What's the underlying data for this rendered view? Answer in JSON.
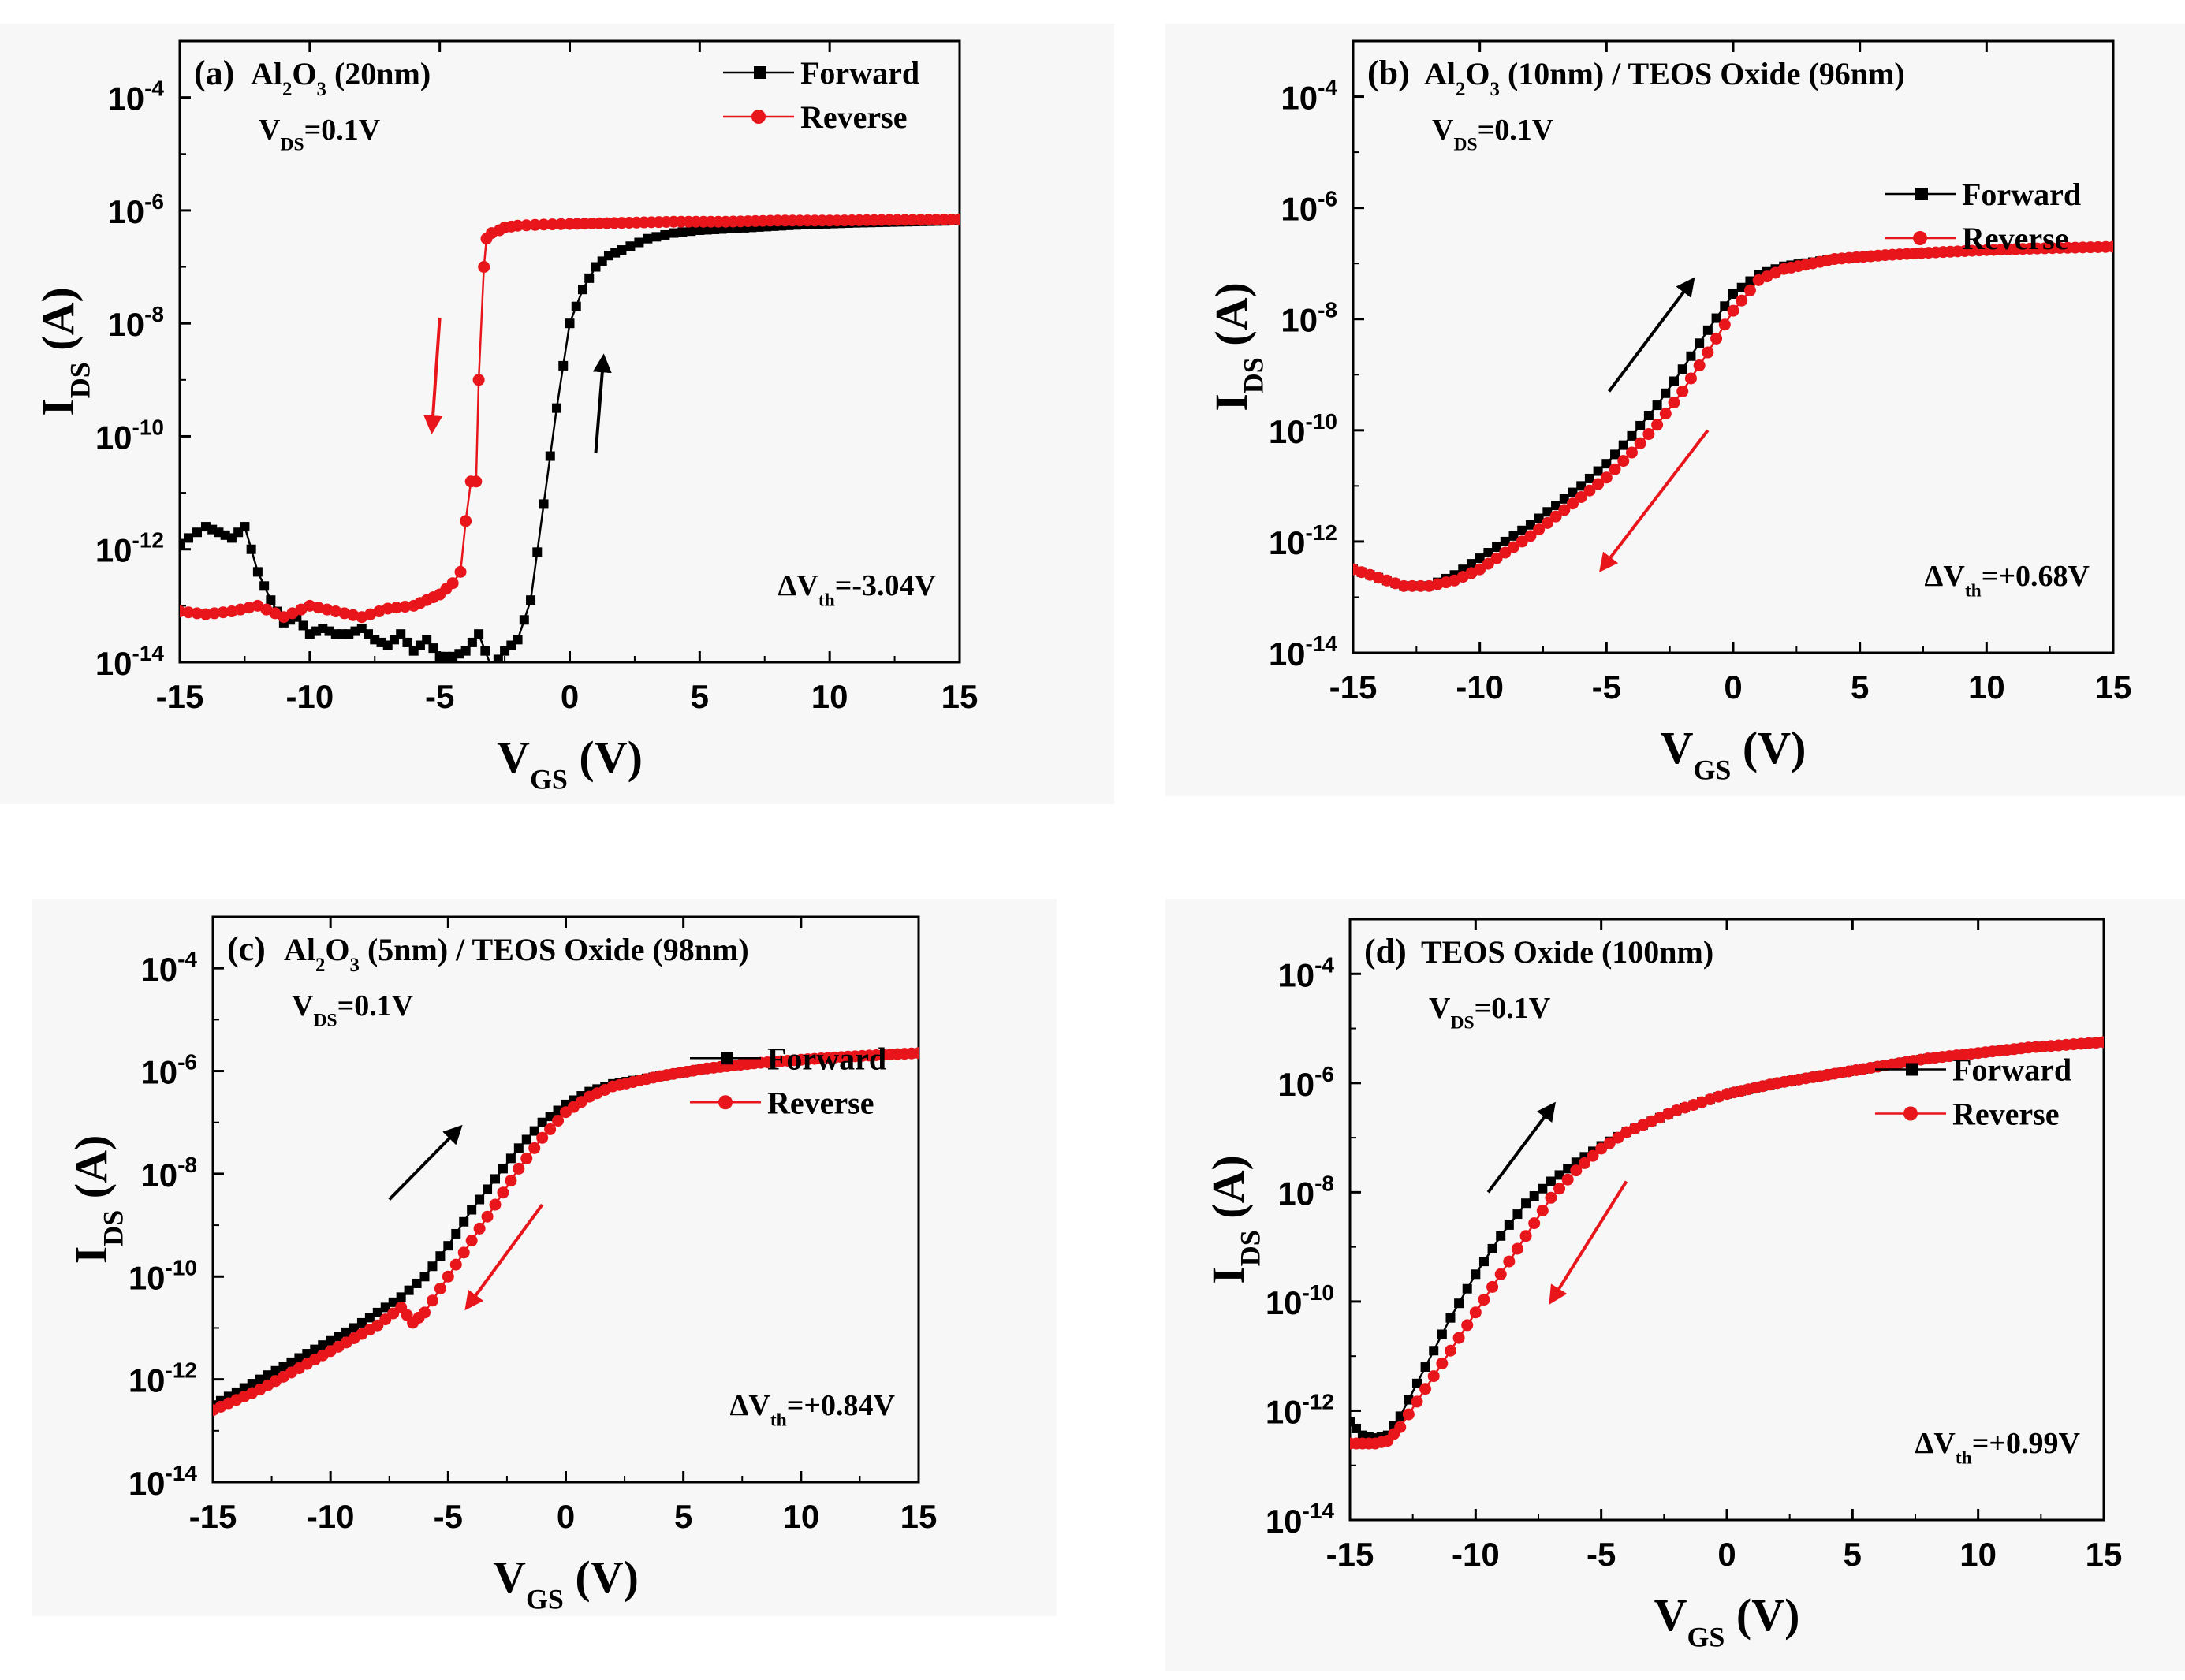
{
  "chart_data": [
    {
      "type": "line",
      "panel_id": "(a)",
      "label_parts": [
        "Al",
        "2",
        "O",
        "3",
        " (20nm)"
      ],
      "vds_parts": [
        "V",
        "DS",
        "=0.1V"
      ],
      "dvth_parts": [
        "ΔV",
        "th",
        "=-3.04V"
      ],
      "x_label_parts": [
        "V",
        "GS",
        " (V)"
      ],
      "y_label_parts": [
        "I",
        "DS",
        " (A)"
      ],
      "xlim": [
        -15,
        15
      ],
      "ylim_log10": [
        -14,
        -3
      ],
      "x_ticks": [
        -15,
        -10,
        -5,
        0,
        5,
        10,
        15
      ],
      "y_tick_exponents": [
        -4,
        -6,
        -8,
        -10,
        -12,
        -14
      ],
      "legend": [
        "Forward",
        "Reverse"
      ],
      "legend_pos": "top-right",
      "series": [
        {
          "name": "Forward",
          "color": "#000000",
          "marker": "square",
          "x": [
            -15,
            -14,
            -13.5,
            -13,
            -12.5,
            -12,
            -11.5,
            -11,
            -10.5,
            -10,
            -9.5,
            -9,
            -8.5,
            -8,
            -7.5,
            -7,
            -6.5,
            -6,
            -5.5,
            -5,
            -4.5,
            -4,
            -3.5,
            -3,
            -2.5,
            -2,
            -1.5,
            -1,
            -0.5,
            0,
            0.5,
            1,
            1.5,
            2,
            3,
            4,
            5,
            7,
            9,
            11,
            13,
            15
          ],
          "log10_y": [
            -11.9,
            -11.6,
            -11.7,
            -11.8,
            -11.6,
            -12.4,
            -12.9,
            -13.3,
            -13.2,
            -13.5,
            -13.4,
            -13.5,
            -13.5,
            -13.4,
            -13.6,
            -13.7,
            -13.5,
            -13.8,
            -13.6,
            -13.9,
            -13.9,
            -13.8,
            -13.5,
            -14.1,
            -13.8,
            -13.6,
            -12.9,
            -11.2,
            -9.5,
            -8.0,
            -7.4,
            -7.0,
            -6.8,
            -6.7,
            -6.5,
            -6.4,
            -6.35,
            -6.3,
            -6.25,
            -6.22,
            -6.2,
            -6.18
          ]
        },
        {
          "name": "Reverse",
          "color": "#e8151b",
          "marker": "circle",
          "x": [
            -15,
            -14,
            -13,
            -12,
            -11,
            -10,
            -9,
            -8,
            -7,
            -6,
            -5.5,
            -5,
            -4.5,
            -4.2,
            -4,
            -3.8,
            -3.6,
            -3.5,
            -3.3,
            -3.2,
            -3,
            -2.7,
            -2.5,
            -2,
            -1,
            0,
            2,
            4,
            6,
            8,
            10,
            12,
            15
          ],
          "log10_y": [
            -13.1,
            -13.15,
            -13.1,
            -13.0,
            -13.2,
            -13.0,
            -13.1,
            -13.2,
            -13.05,
            -13.0,
            -12.9,
            -12.8,
            -12.6,
            -12.4,
            -11.5,
            -10.8,
            -10.8,
            -9.0,
            -7.0,
            -6.5,
            -6.4,
            -6.35,
            -6.3,
            -6.27,
            -6.25,
            -6.24,
            -6.22,
            -6.2,
            -6.2,
            -6.18,
            -6.18,
            -6.17,
            -6.16
          ]
        }
      ],
      "arrows": [
        {
          "color": "#000000",
          "from": [
            1.0,
            -10.3
          ],
          "to": [
            1.3,
            -8.6
          ]
        },
        {
          "color": "#e8151b",
          "from": [
            -5.0,
            -7.9
          ],
          "to": [
            -5.3,
            -9.9
          ]
        }
      ]
    },
    {
      "type": "line",
      "panel_id": "(b)",
      "label_parts": [
        "Al",
        "2",
        "O",
        "3",
        " (10nm) / TEOS Oxide (96nm)"
      ],
      "vds_parts": [
        "V",
        "DS",
        "=0.1V"
      ],
      "dvth_parts": [
        "ΔV",
        "th",
        "=+0.68V"
      ],
      "x_label_parts": [
        "V",
        "GS",
        " (V)"
      ],
      "y_label_parts": [
        "I",
        "DS",
        " (A)"
      ],
      "xlim": [
        -15,
        15
      ],
      "ylim_log10": [
        -14,
        -3
      ],
      "x_ticks": [
        -15,
        -10,
        -5,
        0,
        5,
        10,
        15
      ],
      "y_tick_exponents": [
        -4,
        -6,
        -8,
        -10,
        -12,
        -14
      ],
      "legend": [
        "Forward",
        "Reverse"
      ],
      "legend_pos": "right",
      "series": [
        {
          "name": "Forward",
          "color": "#000000",
          "marker": "square",
          "x": [
            -15,
            -14,
            -13,
            -12,
            -11,
            -10,
            -9,
            -8,
            -7,
            -6,
            -5,
            -4,
            -3,
            -2,
            -1,
            0,
            1,
            2,
            4,
            6,
            8,
            10,
            12,
            15
          ],
          "log10_y": [
            -12.5,
            -12.65,
            -12.8,
            -12.8,
            -12.6,
            -12.3,
            -12.0,
            -11.7,
            -11.35,
            -11.0,
            -10.6,
            -10.1,
            -9.55,
            -8.9,
            -8.2,
            -7.55,
            -7.2,
            -7.05,
            -6.92,
            -6.85,
            -6.8,
            -6.76,
            -6.73,
            -6.7
          ]
        },
        {
          "name": "Reverse",
          "color": "#e8151b",
          "marker": "circle",
          "x": [
            -15,
            -14,
            -13,
            -12,
            -11,
            -10,
            -9,
            -8,
            -7,
            -6,
            -5,
            -4,
            -3,
            -2,
            -1,
            0,
            1,
            2,
            4,
            6,
            8,
            10,
            12,
            15
          ],
          "log10_y": [
            -12.5,
            -12.65,
            -12.8,
            -12.8,
            -12.7,
            -12.5,
            -12.2,
            -11.9,
            -11.55,
            -11.2,
            -10.85,
            -10.4,
            -9.9,
            -9.3,
            -8.6,
            -7.85,
            -7.3,
            -7.1,
            -6.92,
            -6.85,
            -6.8,
            -6.76,
            -6.73,
            -6.7
          ]
        }
      ],
      "arrows": [
        {
          "color": "#000000",
          "from": [
            -4.9,
            -9.3
          ],
          "to": [
            -1.6,
            -7.3
          ]
        },
        {
          "color": "#e8151b",
          "from": [
            -1.0,
            -10.0
          ],
          "to": [
            -5.2,
            -12.5
          ]
        }
      ]
    },
    {
      "type": "line",
      "panel_id": "(c)",
      "label_parts": [
        "Al",
        "2",
        "O",
        "3",
        " (5nm) / TEOS Oxide (98nm)"
      ],
      "vds_parts": [
        "V",
        "DS",
        "=0.1V"
      ],
      "dvth_parts": [
        "ΔV",
        "th",
        "=+0.84V"
      ],
      "x_label_parts": [
        "V",
        "GS",
        " (V)"
      ],
      "y_label_parts": [
        "I",
        "DS",
        " (A)"
      ],
      "xlim": [
        -15,
        15
      ],
      "ylim_log10": [
        -14,
        -3
      ],
      "x_ticks": [
        -15,
        -10,
        -5,
        0,
        5,
        10,
        15
      ],
      "y_tick_exponents": [
        -4,
        -6,
        -8,
        -10,
        -12,
        -14
      ],
      "legend": [
        "Forward",
        "Reverse"
      ],
      "legend_pos": "right",
      "series": [
        {
          "name": "Forward",
          "color": "#000000",
          "marker": "square",
          "x": [
            -15,
            -14,
            -13,
            -12,
            -11,
            -10,
            -9,
            -8,
            -7,
            -6,
            -5,
            -4,
            -3,
            -2,
            -1,
            0,
            1,
            2,
            4,
            6,
            8,
            10,
            12,
            15
          ],
          "log10_y": [
            -12.5,
            -12.25,
            -12.0,
            -11.75,
            -11.5,
            -11.25,
            -11.0,
            -10.7,
            -10.4,
            -10.0,
            -9.4,
            -8.7,
            -8.1,
            -7.5,
            -7.0,
            -6.65,
            -6.4,
            -6.25,
            -6.1,
            -5.95,
            -5.85,
            -5.78,
            -5.72,
            -5.65
          ]
        },
        {
          "name": "Reverse",
          "color": "#e8151b",
          "marker": "circle",
          "x": [
            -15,
            -14,
            -13,
            -12,
            -11,
            -10,
            -9,
            -8,
            -7,
            -6.5,
            -6,
            -5,
            -4,
            -3,
            -2,
            -1,
            0,
            1,
            2,
            4,
            6,
            8,
            10,
            12,
            15
          ],
          "log10_y": [
            -12.6,
            -12.4,
            -12.2,
            -11.95,
            -11.7,
            -11.45,
            -11.2,
            -10.95,
            -10.6,
            -10.9,
            -10.7,
            -10.0,
            -9.3,
            -8.6,
            -7.9,
            -7.3,
            -6.8,
            -6.5,
            -6.3,
            -6.1,
            -5.95,
            -5.85,
            -5.78,
            -5.72,
            -5.65
          ]
        }
      ],
      "arrows": [
        {
          "color": "#000000",
          "from": [
            -7.5,
            -8.5
          ],
          "to": [
            -4.5,
            -7.1
          ]
        },
        {
          "color": "#e8151b",
          "from": [
            -1.0,
            -8.6
          ],
          "to": [
            -4.2,
            -10.6
          ]
        }
      ]
    },
    {
      "type": "line",
      "panel_id": "(d)",
      "label_parts": [
        "TEOS Oxide (100nm)"
      ],
      "vds_parts": [
        "V",
        "DS",
        "=0.1V"
      ],
      "dvth_parts": [
        "ΔV",
        "th",
        "=+0.99V"
      ],
      "x_label_parts": [
        "V",
        "GS",
        " (V)"
      ],
      "y_label_parts": [
        "I",
        "DS",
        " (A)"
      ],
      "xlim": [
        -15,
        15
      ],
      "ylim_log10": [
        -14,
        -3
      ],
      "x_ticks": [
        -15,
        -10,
        -5,
        0,
        5,
        10,
        15
      ],
      "y_tick_exponents": [
        -4,
        -6,
        -8,
        -10,
        -12,
        -14
      ],
      "legend": [
        "Forward",
        "Reverse"
      ],
      "legend_pos": "right",
      "series": [
        {
          "name": "Forward",
          "color": "#000000",
          "marker": "square",
          "x": [
            -15,
            -14.5,
            -14,
            -13.5,
            -13,
            -12,
            -11,
            -10,
            -9,
            -8,
            -7,
            -6,
            -5,
            -4,
            -3,
            -2,
            -1,
            0,
            2,
            4,
            6,
            8,
            10,
            12,
            15
          ],
          "log10_y": [
            -12.2,
            -12.45,
            -12.5,
            -12.45,
            -12.1,
            -11.2,
            -10.3,
            -9.5,
            -8.8,
            -8.2,
            -7.8,
            -7.45,
            -7.15,
            -6.9,
            -6.7,
            -6.5,
            -6.35,
            -6.2,
            -6.0,
            -5.85,
            -5.7,
            -5.55,
            -5.45,
            -5.35,
            -5.25
          ]
        },
        {
          "name": "Reverse",
          "color": "#e8151b",
          "marker": "circle",
          "x": [
            -15,
            -14.5,
            -14,
            -13.5,
            -13,
            -12,
            -11,
            -10,
            -9,
            -8,
            -7,
            -6,
            -5,
            -4,
            -3,
            -2,
            -1,
            0,
            2,
            4,
            6,
            8,
            10,
            12,
            15
          ],
          "log10_y": [
            -12.6,
            -12.6,
            -12.6,
            -12.55,
            -12.3,
            -11.6,
            -10.9,
            -10.2,
            -9.5,
            -8.8,
            -8.1,
            -7.6,
            -7.2,
            -6.9,
            -6.7,
            -6.5,
            -6.35,
            -6.2,
            -6.0,
            -5.85,
            -5.7,
            -5.55,
            -5.45,
            -5.35,
            -5.25
          ]
        }
      ],
      "arrows": [
        {
          "color": "#000000",
          "from": [
            -9.5,
            -8.0
          ],
          "to": [
            -6.9,
            -6.4
          ]
        },
        {
          "color": "#e8151b",
          "from": [
            -4.0,
            -7.8
          ],
          "to": [
            -7.0,
            -10.0
          ]
        }
      ]
    }
  ]
}
